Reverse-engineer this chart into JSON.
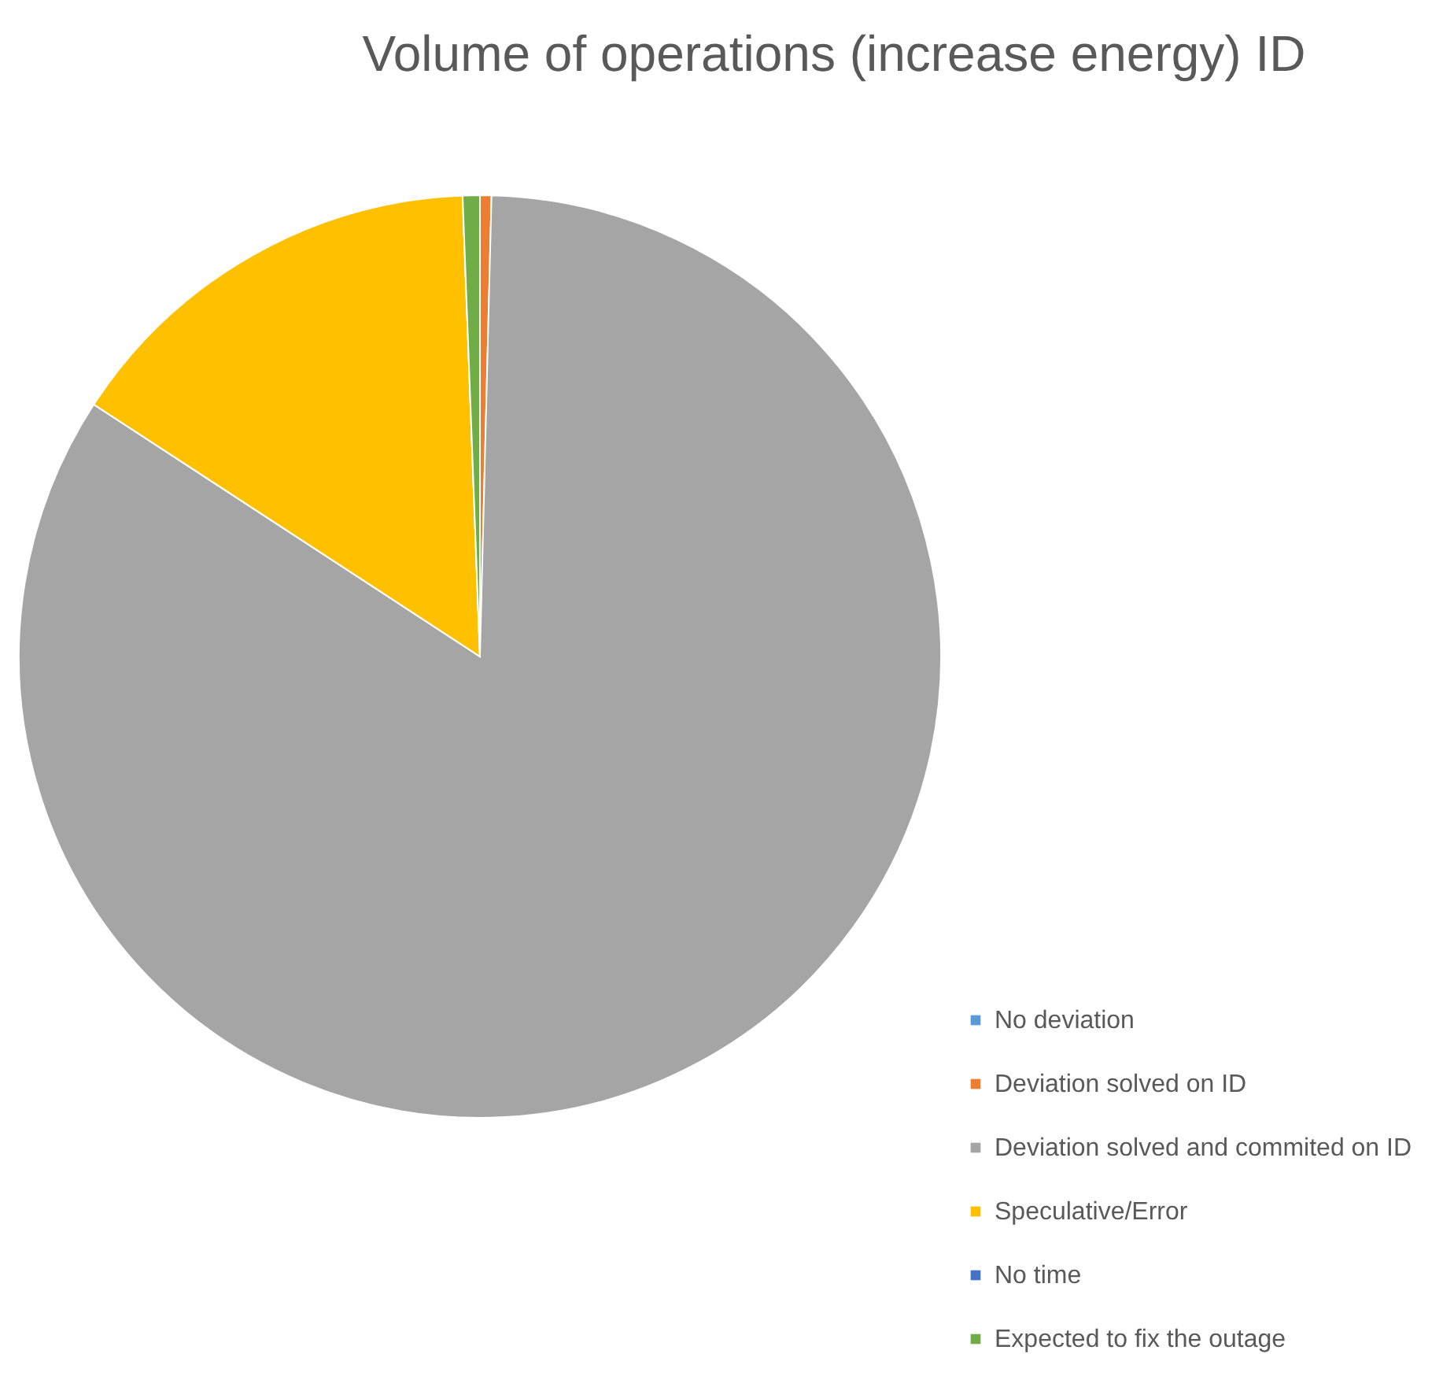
{
  "chart_data": {
    "type": "pie",
    "title": "Volume of operations (increase energy) ID",
    "categories": [
      "No deviation",
      "Deviation solved on ID",
      "Deviation solved and commited on ID",
      "Speculative/Error",
      "No time",
      "Expected to fix the outage"
    ],
    "values": [
      0,
      0.4,
      83.8,
      15.2,
      0,
      0.6
    ],
    "colors": [
      "#5b9bd5",
      "#ed7d31",
      "#a5a5a5",
      "#ffc000",
      "#4472c4",
      "#70ad47"
    ],
    "legend": "bottom right"
  }
}
